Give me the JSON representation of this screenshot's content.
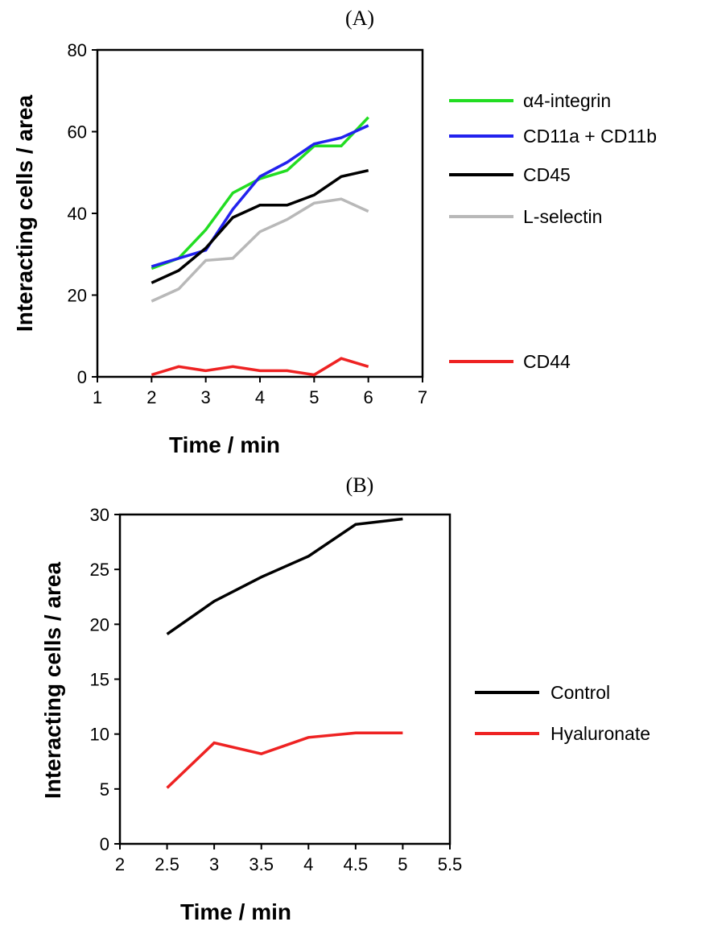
{
  "chart_data": [
    {
      "type": "line",
      "panel_label": "(A)",
      "xlabel": "Time / min",
      "ylabel": "Interacting cells / area",
      "xlim": [
        1,
        7
      ],
      "ylim": [
        0,
        80
      ],
      "xticks": [
        1,
        2,
        3,
        4,
        5,
        6,
        7
      ],
      "yticks": [
        0,
        20,
        40,
        60,
        80
      ],
      "x": [
        2,
        2.5,
        3,
        3.5,
        4,
        4.5,
        5,
        5.5,
        6
      ],
      "legend_position": "right",
      "series": [
        {
          "name": "α4-integrin",
          "color": "#22dd22",
          "values": [
            26.5,
            29,
            36,
            45,
            48.5,
            50.5,
            56.5,
            56.5,
            63.5
          ]
        },
        {
          "name": "CD11a + CD11b",
          "color": "#2222ee",
          "values": [
            27,
            29,
            31,
            41,
            49,
            52.5,
            57,
            58.5,
            61.5
          ]
        },
        {
          "name": "CD45",
          "color": "#000000",
          "values": [
            23,
            26,
            31.5,
            39,
            42,
            42,
            44.5,
            49,
            50.5
          ]
        },
        {
          "name": "L-selectin",
          "color": "#b8b8b8",
          "values": [
            18.5,
            21.5,
            28.5,
            29,
            35.5,
            38.5,
            42.5,
            43.5,
            40.5
          ]
        },
        {
          "name": "CD44",
          "color": "#ee2222",
          "values": [
            0.5,
            2.5,
            1.5,
            2.5,
            1.5,
            1.5,
            0.5,
            4.5,
            2.5
          ]
        }
      ]
    },
    {
      "type": "line",
      "panel_label": "(B)",
      "xlabel": "Time / min",
      "ylabel": "Interacting cells / area",
      "xlim": [
        2,
        5.5
      ],
      "ylim": [
        0,
        30
      ],
      "xticks": [
        2,
        2.5,
        3,
        3.5,
        4,
        4.5,
        5,
        5.5
      ],
      "yticks": [
        0,
        5,
        10,
        15,
        20,
        25,
        30
      ],
      "x": [
        2.5,
        3,
        3.5,
        4,
        4.5,
        5
      ],
      "legend_position": "right",
      "series": [
        {
          "name": "Control",
          "color": "#000000",
          "values": [
            19.1,
            22.1,
            24.3,
            26.2,
            29.1,
            29.6
          ]
        },
        {
          "name": "Hyaluronate",
          "color": "#ee2222",
          "values": [
            5.1,
            9.2,
            8.2,
            9.7,
            10.1,
            10.1
          ]
        }
      ]
    }
  ]
}
